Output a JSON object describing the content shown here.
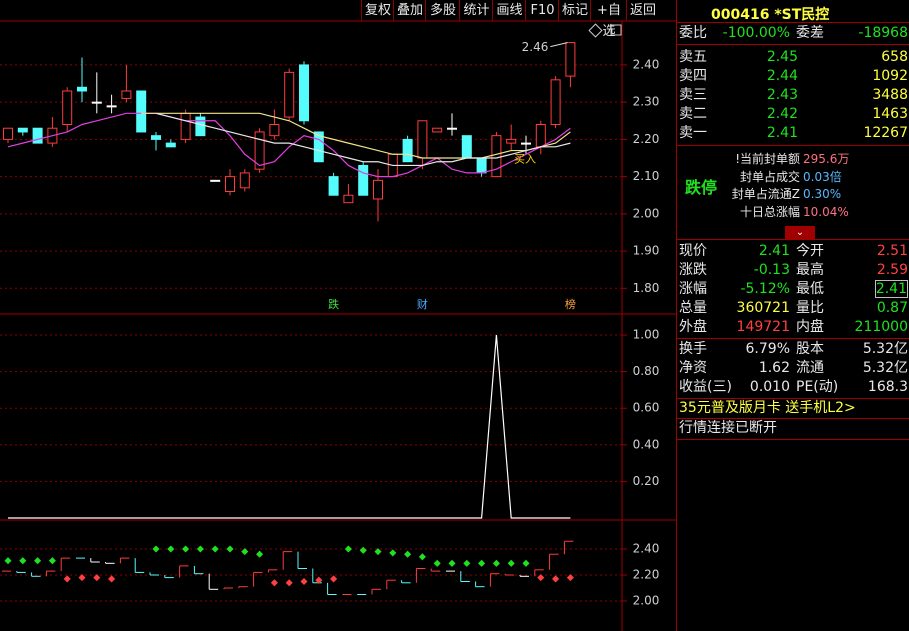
{
  "toolbar": {
    "buttons": [
      "复权",
      "叠加",
      "多股",
      "统计",
      "画线",
      "F10",
      "标记",
      "+自选",
      "返回"
    ]
  },
  "chart_data": [
    {
      "type": "candlestick",
      "open": [
        2.2,
        2.23,
        2.23,
        2.19,
        2.24,
        2.34,
        2.3,
        2.29,
        2.31,
        2.33,
        2.21,
        2.19,
        2.2,
        2.26,
        2.09,
        2.06,
        2.07,
        2.12,
        2.21,
        2.26,
        2.4,
        2.22,
        2.1,
        2.03,
        2.13,
        2.04,
        2.1,
        2.2,
        2.15,
        2.22,
        2.23,
        2.21,
        2.15,
        2.1,
        2.19,
        2.19,
        2.18,
        2.24,
        2.37
      ],
      "high": [
        2.23,
        2.23,
        2.23,
        2.26,
        2.34,
        2.42,
        2.38,
        2.32,
        2.4,
        2.33,
        2.22,
        2.2,
        2.28,
        2.27,
        2.09,
        2.12,
        2.12,
        2.23,
        2.28,
        2.39,
        2.41,
        2.22,
        2.11,
        2.08,
        2.14,
        2.12,
        2.16,
        2.21,
        2.25,
        2.23,
        2.27,
        2.21,
        2.15,
        2.22,
        2.24,
        2.21,
        2.25,
        2.37,
        2.46
      ],
      "low": [
        2.19,
        2.21,
        2.19,
        2.18,
        2.22,
        2.3,
        2.27,
        2.27,
        2.3,
        2.22,
        2.17,
        2.18,
        2.19,
        2.21,
        2.09,
        2.05,
        2.06,
        2.11,
        2.2,
        2.25,
        2.24,
        2.14,
        2.05,
        2.03,
        2.05,
        1.98,
        2.1,
        2.14,
        2.12,
        2.22,
        2.21,
        2.15,
        2.1,
        2.1,
        2.17,
        2.16,
        2.16,
        2.23,
        2.34
      ],
      "close": [
        2.23,
        2.22,
        2.19,
        2.23,
        2.33,
        2.33,
        2.3,
        2.29,
        2.33,
        2.22,
        2.2,
        2.18,
        2.27,
        2.21,
        2.09,
        2.1,
        2.11,
        2.22,
        2.24,
        2.38,
        2.25,
        2.14,
        2.05,
        2.05,
        2.05,
        2.09,
        2.16,
        2.14,
        2.25,
        2.23,
        2.23,
        2.15,
        2.11,
        2.21,
        2.2,
        2.19,
        2.24,
        2.36,
        2.46
      ],
      "up_color": "#ff3c3c",
      "down_color": "#54fcfc",
      "flat_color": "#ffffff",
      "series": [
        {
          "color": "#e040e0",
          "values": [
            2.18,
            2.19,
            2.2,
            2.21,
            2.22,
            2.24,
            2.25,
            2.26,
            2.27,
            2.27,
            2.27,
            2.26,
            2.25,
            2.25,
            2.25,
            2.21,
            2.16,
            2.13,
            2.14,
            2.18,
            2.21,
            2.2,
            2.17,
            2.13,
            2.11,
            2.1,
            2.1,
            2.11,
            2.13,
            2.15,
            2.12,
            2.11,
            2.11,
            2.12,
            2.14,
            2.16,
            2.18,
            2.2,
            2.23
          ]
        },
        {
          "color": "#f0e68c",
          "values": [
            null,
            null,
            null,
            null,
            null,
            null,
            null,
            null,
            null,
            2.27,
            2.27,
            2.27,
            2.27,
            2.27,
            2.27,
            2.27,
            2.27,
            2.27,
            2.26,
            2.25,
            2.23,
            2.21,
            2.2,
            2.19,
            2.18,
            2.17,
            2.16,
            2.16,
            2.15,
            2.15,
            2.15,
            2.15,
            2.15,
            2.16,
            2.17,
            2.17,
            2.18,
            2.19,
            2.22
          ]
        },
        {
          "color": "#e8e8e8",
          "values": [
            null,
            null,
            null,
            null,
            null,
            null,
            null,
            null,
            null,
            null,
            2.27,
            2.26,
            2.25,
            2.24,
            2.23,
            2.22,
            2.21,
            2.2,
            2.19,
            2.19,
            2.18,
            2.17,
            2.16,
            2.15,
            2.14,
            2.14,
            2.13,
            2.13,
            2.13,
            2.14,
            2.14,
            2.15,
            2.15,
            2.15,
            2.16,
            2.17,
            2.18,
            2.18,
            2.19
          ]
        }
      ],
      "max_label": "2.46",
      "buy_labels": [
        null,
        null,
        null,
        null,
        null,
        null,
        null,
        null,
        null,
        null,
        null,
        null,
        null,
        null,
        null,
        null,
        null,
        null,
        null,
        null,
        null,
        null,
        null,
        null,
        null,
        null,
        null,
        null,
        null,
        null,
        null,
        null,
        null,
        null,
        null,
        "买入",
        null,
        null,
        null
      ],
      "event_labels": [
        null,
        null,
        null,
        null,
        null,
        null,
        null,
        null,
        null,
        null,
        null,
        null,
        null,
        null,
        null,
        null,
        null,
        null,
        null,
        null,
        null,
        null,
        "跌",
        null,
        null,
        null,
        null,
        null,
        "财",
        null,
        null,
        null,
        null,
        null,
        null,
        null,
        null,
        null,
        "榜"
      ],
      "event_colors": [
        null,
        null,
        null,
        null,
        null,
        null,
        null,
        null,
        null,
        null,
        null,
        null,
        null,
        null,
        null,
        null,
        null,
        null,
        null,
        null,
        null,
        null,
        "#40e040",
        null,
        null,
        null,
        null,
        null,
        "#4fa8ff",
        null,
        null,
        null,
        null,
        null,
        null,
        null,
        null,
        null,
        "#ffa040"
      ],
      "ylim": [
        1.731,
        2.518
      ],
      "yticks": [
        {
          "value": 2.4,
          "label": "2.40"
        },
        {
          "value": 2.3,
          "label": "2.30"
        },
        {
          "value": 2.2,
          "label": "2.20"
        },
        {
          "value": 2.1,
          "label": "2.10"
        },
        {
          "value": 2.0,
          "label": "2.00"
        },
        {
          "value": 1.9,
          "label": "1.90"
        },
        {
          "value": 1.8,
          "label": "1.80"
        }
      ],
      "grid": true
    },
    {
      "type": "line",
      "color": "#ffffff",
      "values": [
        0,
        0,
        0,
        0,
        0,
        0,
        0,
        0,
        0,
        0,
        0,
        0,
        0,
        0,
        0,
        0,
        0,
        0,
        0,
        0,
        0,
        0,
        0,
        0,
        0,
        0,
        0,
        0,
        0,
        0,
        0,
        0,
        0,
        1,
        0,
        0,
        0,
        0,
        0
      ],
      "ylim": [
        0,
        1.104
      ],
      "yticks": [
        {
          "value": 1.0,
          "label": "1.00"
        },
        {
          "value": 0.8,
          "label": "0.80"
        },
        {
          "value": 0.6,
          "label": "0.60"
        },
        {
          "value": 0.4,
          "label": "0.40"
        },
        {
          "value": 0.2,
          "label": "0.20"
        }
      ],
      "grid": true
    },
    {
      "type": "indicator",
      "series": [
        {
          "color": "#20e020",
          "values": [
            2.31,
            2.31,
            2.31,
            2.31,
            null,
            null,
            null,
            null,
            null,
            null,
            2.4,
            2.4,
            2.4,
            2.4,
            2.4,
            2.4,
            2.38,
            2.36,
            null,
            null,
            null,
            null,
            null,
            2.4,
            2.39,
            2.38,
            2.37,
            2.36,
            2.34,
            2.29,
            2.29,
            2.29,
            2.29,
            2.29,
            2.29,
            2.29,
            null,
            null,
            null
          ]
        },
        {
          "color": "#ff4040",
          "values": [
            null,
            null,
            null,
            null,
            2.17,
            2.18,
            2.18,
            2.17,
            null,
            null,
            null,
            null,
            null,
            null,
            null,
            null,
            null,
            null,
            2.14,
            2.14,
            2.15,
            2.16,
            2.17,
            null,
            null,
            null,
            null,
            null,
            null,
            null,
            null,
            null,
            null,
            null,
            null,
            null,
            2.18,
            2.17,
            2.18
          ]
        }
      ],
      "ylim": [
        1.769,
        2.608
      ],
      "yticks": [
        {
          "value": 2.4,
          "label": "2.40"
        },
        {
          "value": 2.2,
          "label": "2.20"
        },
        {
          "value": 2.0,
          "label": "2.00"
        }
      ],
      "grid": true
    }
  ],
  "quote": {
    "code": "000416",
    "name": "*ST民控",
    "weibi": [
      "委比",
      "-100.00%",
      "委差",
      "-18968"
    ],
    "asks": [
      [
        "卖五",
        "2.45",
        "658"
      ],
      [
        "卖四",
        "2.44",
        "1092"
      ],
      [
        "卖三",
        "2.43",
        "3488"
      ],
      [
        "卖二",
        "2.42",
        "1463"
      ],
      [
        "卖一",
        "2.41",
        "12267"
      ]
    ],
    "limit_status": "跌停",
    "limit_items": [
      [
        "!当前封单额",
        "295.6万"
      ],
      [
        "封单占成交",
        "0.03倍"
      ],
      [
        "封单占流通Z",
        "0.30%"
      ],
      [
        "十日总涨幅",
        "10.04%"
      ]
    ],
    "stats": [
      [
        "现价",
        "2.41",
        "今开",
        "2.51"
      ],
      [
        "涨跌",
        "-0.13",
        "最高",
        "2.59"
      ],
      [
        "涨幅",
        "-5.12%",
        "最低",
        "2.41"
      ],
      [
        "总量",
        "360721",
        "量比",
        "0.87"
      ],
      [
        "外盘",
        "149721",
        "内盘",
        "211000"
      ]
    ],
    "stats2": [
      [
        "换手",
        "6.79%",
        "股本",
        "5.32亿"
      ],
      [
        "净资",
        "1.62",
        "流通",
        "5.32亿"
      ],
      [
        "收益(三)",
        "0.010",
        "PE(动)",
        "168.3"
      ]
    ],
    "promo": "35元普及版月卡 送手机L2>",
    "connection": "行情连接已断开"
  }
}
